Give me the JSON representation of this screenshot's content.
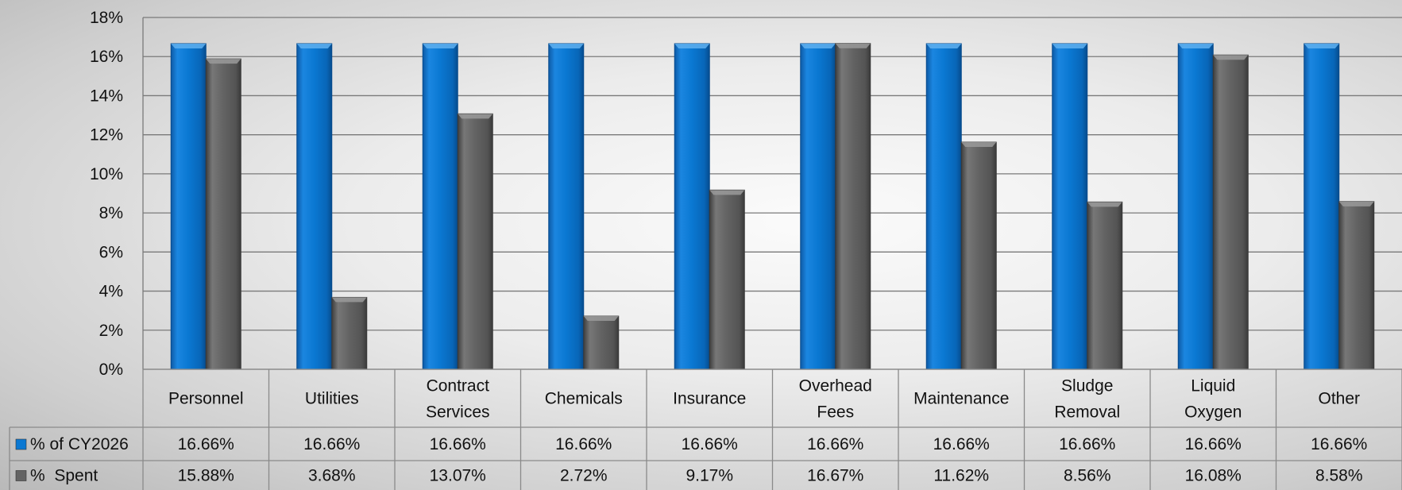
{
  "chart_data": {
    "type": "bar",
    "categories": [
      "Personnel",
      "Utilities",
      "Contract Services",
      "Chemicals",
      "Insurance",
      "Overhead Fees",
      "Maintenance",
      "Sludge Removal",
      "Liquid Oxygen",
      "Other"
    ],
    "series": [
      {
        "name": "% of CY2026",
        "color": "#0a78d2",
        "values": [
          16.66,
          16.66,
          16.66,
          16.66,
          16.66,
          16.66,
          16.66,
          16.66,
          16.66,
          16.66
        ],
        "labels": [
          "16.66%",
          "16.66%",
          "16.66%",
          "16.66%",
          "16.66%",
          "16.66%",
          "16.66%",
          "16.66%",
          "16.66%",
          "16.66%"
        ]
      },
      {
        "name": "%  Spent",
        "color": "#636363",
        "values": [
          15.88,
          3.68,
          13.07,
          2.72,
          9.17,
          16.67,
          11.62,
          8.56,
          16.08,
          8.58
        ],
        "labels": [
          "15.88%",
          "3.68%",
          "13.07%",
          "2.72%",
          "9.17%",
          "16.67%",
          "11.62%",
          "8.56%",
          "16.08%",
          "8.58%"
        ]
      }
    ],
    "ylim": [
      0,
      18
    ],
    "y_ticks": [
      "0%",
      "2%",
      "4%",
      "6%",
      "8%",
      "10%",
      "12%",
      "14%",
      "16%",
      "18%"
    ],
    "grid": true,
    "legend": "data-table-left"
  }
}
